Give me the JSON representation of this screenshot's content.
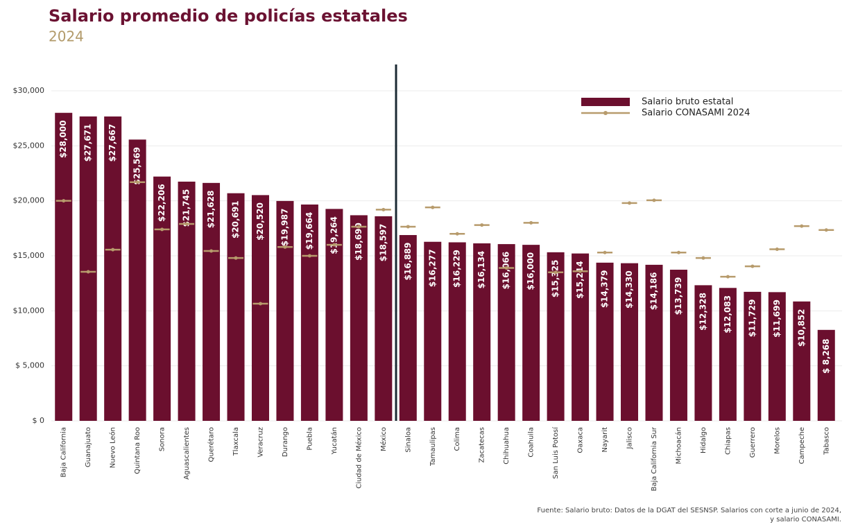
{
  "chart_data": {
    "type": "bar",
    "title": "Salario promedio de policías estatales",
    "subtitle": "2024",
    "categories": [
      "Baja California",
      "Guanajuato",
      "Nuevo León",
      "Quintana Roo",
      "Sonora",
      "Aguascalientes",
      "Querétaro",
      "Tlaxcala",
      "Veracruz",
      "Durango",
      "Puebla",
      "Yucatán",
      "Ciudad de México",
      "México",
      "Sinaloa",
      "Tamaulipas",
      "Colima",
      "Zacatecas",
      "Chihuahua",
      "Coahuila",
      "San Luis Potosí",
      "Oaxaca",
      "Nayarit",
      "Jalisco",
      "Baja California Sur",
      "Michoacán",
      "Hidalgo",
      "Chiapas",
      "Guerrero",
      "Morelos",
      "Campeche",
      "Tabasco"
    ],
    "series": [
      {
        "name": "Salario bruto estatal",
        "type": "bar",
        "color": "#6b0f2e",
        "values": [
          28000,
          27671,
          27667,
          25569,
          22206,
          21745,
          21628,
          20691,
          20520,
          19987,
          19664,
          19264,
          18690,
          18597,
          16889,
          16277,
          16229,
          16134,
          16066,
          16000,
          15325,
          15214,
          14379,
          14330,
          14186,
          13739,
          12328,
          12083,
          11729,
          11699,
          10852,
          8268
        ],
        "value_labels": [
          "$28,000",
          "$27,671",
          "$27,667",
          "$25,569",
          "$22,206",
          "$21,745",
          "$21,628",
          "$20,691",
          "$20,520",
          "$19,987",
          "$19,664",
          "$19,264",
          "$18,690",
          "$18,597",
          "$16,889",
          "$16,277",
          "$16,229",
          "$16,134",
          "$16,066",
          "$16,000",
          "$15,325",
          "$15,214",
          "$14,379",
          "$14,330",
          "$14,186",
          "$13,739",
          "$12,328",
          "$12,083",
          "$11,729",
          "$11,699",
          "$10,852",
          "$ 8,268"
        ]
      },
      {
        "name": "Salario CONASAMI 2024",
        "type": "marker",
        "color": "#b79b6c",
        "values": [
          20000,
          13550,
          15560,
          21700,
          17400,
          17900,
          15440,
          14800,
          10650,
          15800,
          15000,
          16000,
          17650,
          19200,
          17650,
          19400,
          17000,
          17800,
          13900,
          18000,
          13500,
          13600,
          15300,
          19800,
          20050,
          15300,
          14800,
          13100,
          14050,
          15600,
          17700,
          17350
        ]
      }
    ],
    "ylim": [
      0,
      32500
    ],
    "yticks": [
      {
        "value": 0,
        "label": "$   0"
      },
      {
        "value": 5000,
        "label": "$ 5,000"
      },
      {
        "value": 10000,
        "label": "$10,000"
      },
      {
        "value": 15000,
        "label": "$15,000"
      },
      {
        "value": 20000,
        "label": "$20,000"
      },
      {
        "value": 25000,
        "label": "$25,000"
      },
      {
        "value": 30000,
        "label": "$30,000"
      }
    ],
    "grid": true,
    "legend": "top-right",
    "source": [
      "Fuente: Salario bruto: Datos de la DGAT del SESNSP. Salarios con corte a junio de 2024,",
      "y salario CONASAMI."
    ]
  }
}
